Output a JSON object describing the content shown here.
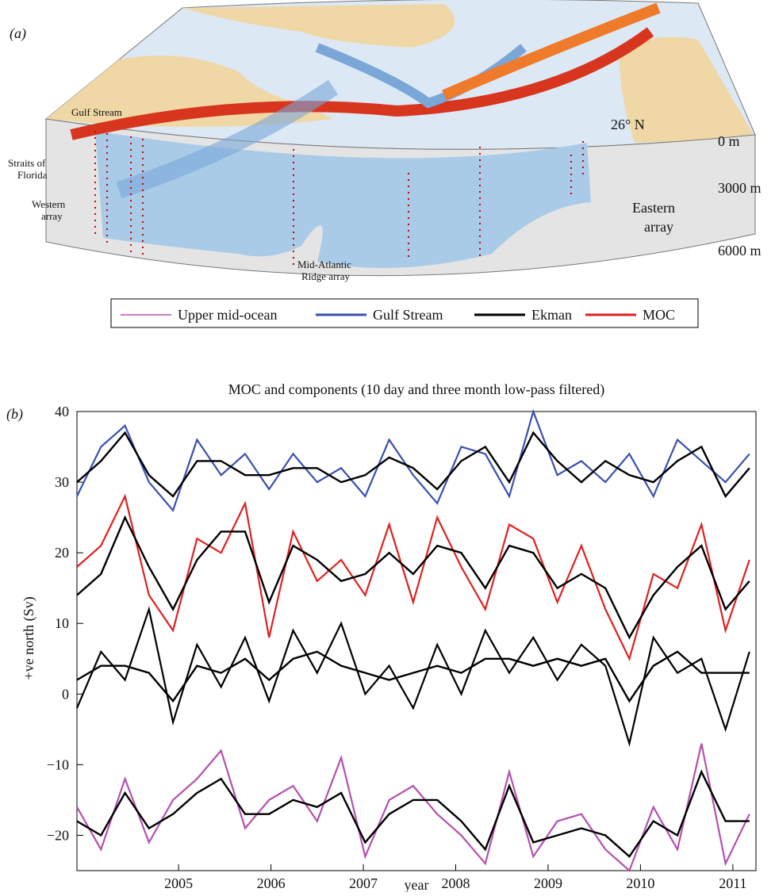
{
  "panel_a": {
    "label": "(a)",
    "current": "Gulf Stream",
    "latitude": "26° N",
    "depths": [
      "0 m",
      "3000 m",
      "6000 m"
    ],
    "arrays": {
      "straits": [
        "Straits of",
        "Florida"
      ],
      "western": [
        "Western",
        "array"
      ],
      "ridge": [
        "Mid-Atlantic",
        "Ridge array"
      ],
      "eastern": [
        "Eastern",
        "array"
      ]
    }
  },
  "panel_b_label": "(b)",
  "chart_data": {
    "type": "line",
    "title": "MOC and components (10 day and three month low-pass filtered)",
    "x_label": "year",
    "y_label": "+ve north (Sv)",
    "x": [
      2003.9,
      2004.16,
      2004.42,
      2004.68,
      2004.94,
      2005.2,
      2005.46,
      2005.72,
      2005.98,
      2006.24,
      2006.5,
      2006.76,
      2007.02,
      2007.28,
      2007.54,
      2007.8,
      2008.06,
      2008.32,
      2008.58,
      2008.84,
      2009.1,
      2009.36,
      2009.62,
      2009.88,
      2010.14,
      2010.4,
      2010.66,
      2010.92,
      2011.18
    ],
    "smooth_color": "#000000",
    "series": [
      {
        "name": "Upper mid-ocean",
        "color": "#b450b0",
        "values": [
          -16,
          -22,
          -12,
          -21,
          -15,
          -12,
          -8,
          -19,
          -15,
          -13,
          -18,
          -9,
          -23,
          -15,
          -13,
          -17,
          -20,
          -24,
          -11,
          -23,
          -18,
          -17,
          -22,
          -25,
          -16,
          -22,
          -7,
          -24,
          -17
        ],
        "smoothed": [
          -18,
          -20,
          -14,
          -19,
          -17,
          -14,
          -12,
          -17,
          -17,
          -15,
          -16,
          -14,
          -21,
          -17,
          -15,
          -15,
          -18,
          -22,
          -13,
          -21,
          -20,
          -19,
          -20,
          -23,
          -18,
          -20,
          -11,
          -18,
          -18
        ]
      },
      {
        "name": "Gulf Stream",
        "color": "#3a50b0",
        "values": [
          28,
          35,
          38,
          30,
          26,
          36,
          31,
          34,
          29,
          34,
          30,
          32,
          28,
          36,
          31,
          27,
          35,
          34,
          28,
          40,
          31,
          33,
          30,
          34,
          28,
          36,
          33,
          30,
          34
        ],
        "smoothed": [
          30,
          33,
          37,
          31,
          28,
          33,
          33,
          31,
          31,
          32,
          32,
          30,
          31,
          33.5,
          32,
          29,
          33,
          35,
          30,
          37,
          33,
          30,
          33,
          31,
          30,
          33,
          35,
          28,
          32
        ]
      },
      {
        "name": "Ekman",
        "color": "#000000",
        "values": [
          -2,
          6,
          2,
          12,
          -4,
          7,
          1,
          8,
          -1,
          9,
          3,
          10,
          0,
          4,
          -2,
          7,
          0,
          9,
          3,
          8,
          2,
          7,
          4,
          -7,
          8,
          3,
          5,
          -5,
          6
        ],
        "smoothed": [
          2,
          4,
          4,
          3,
          -1,
          4,
          3,
          5,
          2,
          5,
          6,
          4,
          3,
          2,
          3,
          4,
          3,
          5,
          5,
          4,
          5,
          4,
          5,
          -1,
          4,
          6,
          3,
          3,
          3
        ]
      },
      {
        "name": "MOC",
        "color": "#e02020",
        "values": [
          18,
          21,
          28,
          14,
          9,
          22,
          20,
          27,
          8,
          23,
          16,
          19,
          14,
          24,
          13,
          25,
          18,
          12,
          24,
          22,
          13,
          21,
          12,
          5,
          17,
          15,
          24,
          9,
          19
        ],
        "smoothed": [
          14,
          17,
          25,
          18,
          12,
          19,
          23,
          23,
          13,
          21,
          19,
          16,
          17,
          20,
          17,
          21,
          20,
          15,
          21,
          20,
          15,
          17,
          15,
          8,
          14,
          18,
          21,
          12,
          16
        ]
      }
    ],
    "xlim": [
      2003.9,
      2011.25
    ],
    "xticks": [
      2005,
      2006,
      2007,
      2008,
      2009,
      2010,
      2011
    ],
    "ylim": [
      -25,
      40
    ],
    "yticks": [
      {
        "value": -20,
        "label": "−20"
      },
      {
        "value": -10,
        "label": "−10"
      },
      0,
      10,
      20,
      30,
      40
    ],
    "grid": false
  }
}
